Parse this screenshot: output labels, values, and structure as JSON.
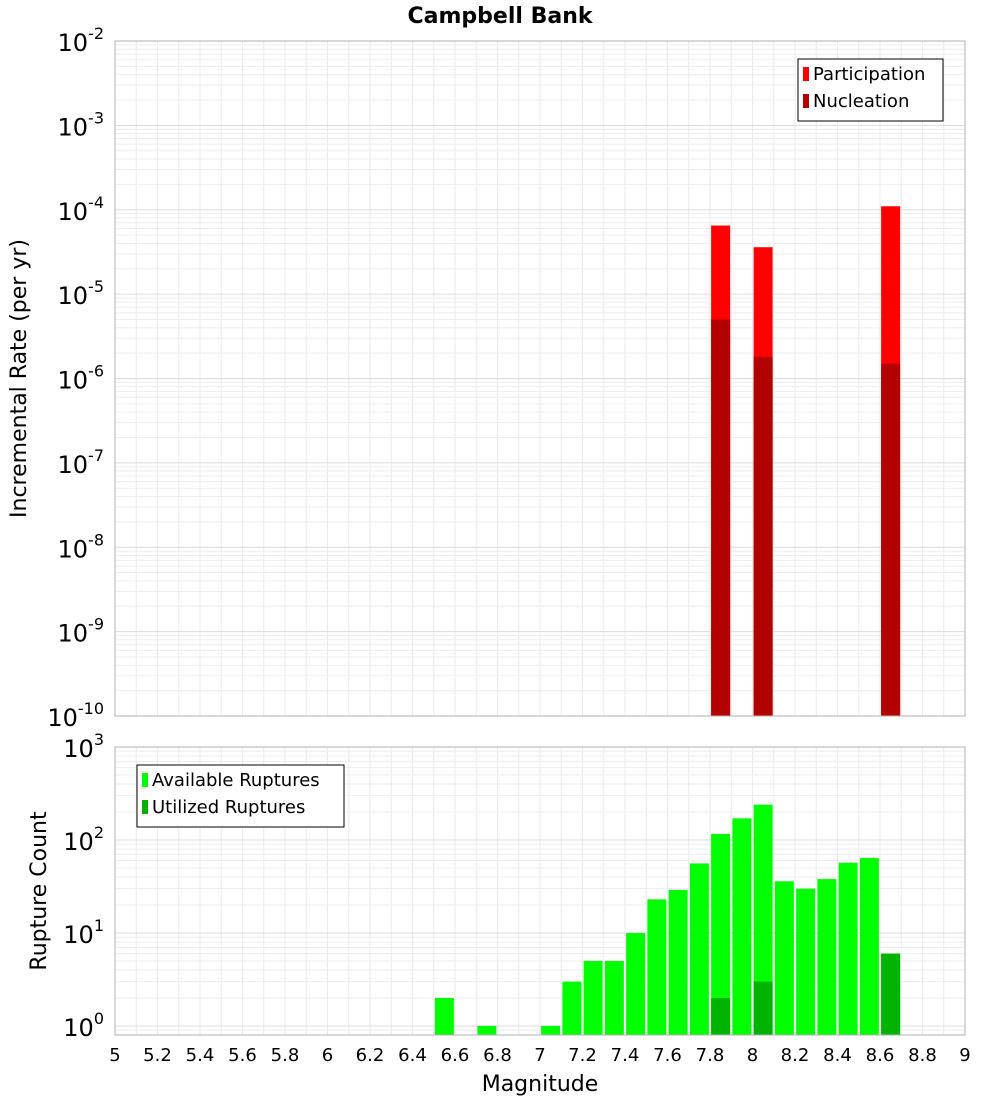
{
  "chart_data": {
    "title": "Campbell Bank",
    "xlabel": "Magnitude",
    "xlim": [
      5,
      9
    ],
    "x_ticks": [
      "5",
      "5.2",
      "5.4",
      "5.6",
      "5.8",
      "6",
      "6.2",
      "6.4",
      "6.6",
      "6.8",
      "7",
      "7.2",
      "7.4",
      "7.6",
      "7.8",
      "8",
      "8.2",
      "8.4",
      "8.6",
      "8.8",
      "9"
    ],
    "grid": true,
    "panels": [
      {
        "type": "bar",
        "ylabel": "Incremental Rate (per yr)",
        "yscale": "log",
        "ylim": [
          1e-10,
          0.01
        ],
        "y_tick_exponents": [
          -2,
          -3,
          -4,
          -5,
          -6,
          -7,
          -8,
          -9,
          -10
        ],
        "legend_position": "top-right",
        "series": [
          {
            "name": "Participation",
            "color": "#ff0000",
            "x": [
              7.85,
              8.05,
              8.65
            ],
            "values": [
              6.5e-05,
              3.6e-05,
              0.00011
            ]
          },
          {
            "name": "Nucleation",
            "color": "#b30000",
            "x": [
              7.85,
              8.05,
              8.65
            ],
            "values": [
              5e-06,
              1.8e-06,
              1.5e-06
            ]
          }
        ]
      },
      {
        "type": "bar",
        "ylabel": "Rupture Count",
        "yscale": "log",
        "ylim": [
          0.8,
          1000
        ],
        "y_tick_exponents": [
          3,
          2,
          1,
          0
        ],
        "legend_position": "top-left",
        "series": [
          {
            "name": "Available Ruptures",
            "color": "#00ff00",
            "x": [
              6.55,
              6.75,
              7.05,
              7.15,
              7.25,
              7.35,
              7.45,
              7.55,
              7.65,
              7.75,
              7.85,
              7.95,
              8.05,
              8.15,
              8.25,
              8.35,
              8.45,
              8.55,
              8.65
            ],
            "values": [
              2,
              1,
              1,
              3,
              5,
              5,
              10,
              23,
              29,
              56,
              116,
              171,
              240,
              36,
              30,
              38,
              57,
              64,
              6
            ]
          },
          {
            "name": "Utilized Ruptures",
            "color": "#00b300",
            "x": [
              7.85,
              8.05,
              8.65
            ],
            "values": [
              2,
              3,
              6
            ]
          }
        ]
      }
    ]
  }
}
